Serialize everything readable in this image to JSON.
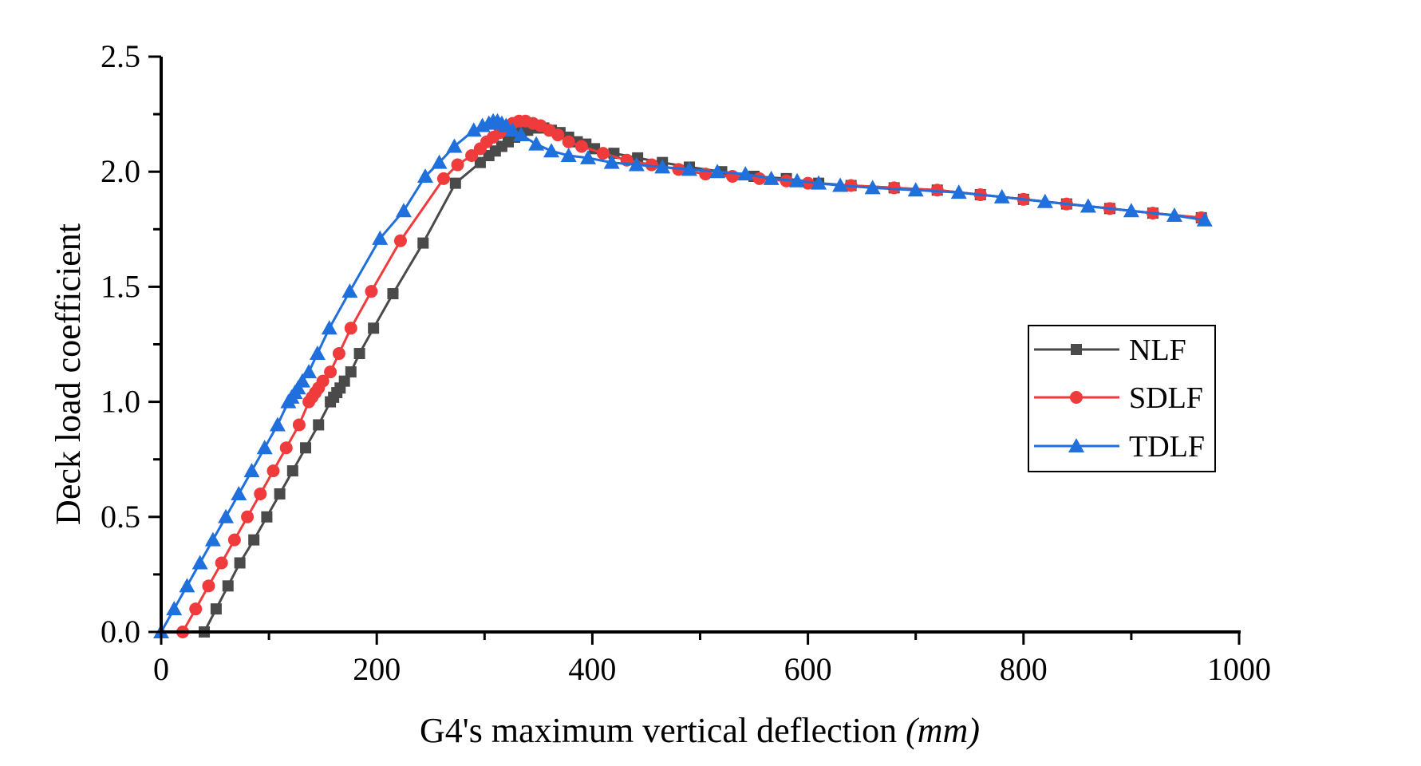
{
  "chart_data": {
    "type": "line",
    "title": "",
    "xlabel": "G4's maximum vertical deflection",
    "xlabel_unit": "(mm)",
    "ylabel": "Deck load coefficient",
    "xlim": [
      0,
      1000
    ],
    "ylim": [
      0,
      2.5
    ],
    "xticks": [
      0,
      200,
      400,
      600,
      800,
      1000
    ],
    "xtick_labels": [
      "0",
      "200",
      "400",
      "600",
      "800",
      "1000"
    ],
    "xminor_step": 100,
    "yticks": [
      0.0,
      0.5,
      1.0,
      1.5,
      2.0,
      2.5
    ],
    "ytick_labels": [
      "0.0",
      "0.5",
      "1.0",
      "1.5",
      "2.0",
      "2.5"
    ],
    "yminor_step": 0.25,
    "grid": false,
    "legend_position": "right",
    "series": [
      {
        "name": "NLF",
        "color": "#4a4a4a",
        "marker": "square",
        "x": [
          40,
          51,
          62,
          73,
          86,
          98,
          110,
          122,
          134,
          146,
          157,
          160,
          163,
          166,
          170,
          176,
          184,
          197,
          215,
          243,
          273,
          296,
          304,
          310,
          316,
          322,
          328,
          334,
          340,
          347,
          355,
          362,
          370,
          378,
          386,
          394,
          402,
          420,
          442,
          465,
          490,
          520,
          550,
          580,
          610,
          640,
          680,
          720,
          760,
          800,
          840,
          880,
          920,
          965
        ],
        "y": [
          0.0,
          0.1,
          0.2,
          0.3,
          0.4,
          0.5,
          0.6,
          0.7,
          0.8,
          0.9,
          1.0,
          1.02,
          1.04,
          1.06,
          1.09,
          1.13,
          1.21,
          1.32,
          1.47,
          1.69,
          1.95,
          2.04,
          2.07,
          2.09,
          2.11,
          2.13,
          2.15,
          2.17,
          2.18,
          2.19,
          2.19,
          2.18,
          2.17,
          2.15,
          2.13,
          2.12,
          2.1,
          2.08,
          2.06,
          2.04,
          2.02,
          2.0,
          1.98,
          1.97,
          1.95,
          1.94,
          1.93,
          1.92,
          1.9,
          1.88,
          1.86,
          1.84,
          1.82,
          1.8
        ]
      },
      {
        "name": "SDLF",
        "color": "#ef3b3b",
        "marker": "circle",
        "x": [
          20,
          32,
          44,
          56,
          68,
          80,
          92,
          104,
          116,
          128,
          137,
          140,
          143,
          146,
          150,
          157,
          165,
          176,
          195,
          222,
          262,
          275,
          288,
          296,
          302,
          308,
          314,
          320,
          326,
          332,
          338,
          345,
          352,
          360,
          368,
          378,
          390,
          410,
          432,
          455,
          480,
          505,
          530,
          555,
          580,
          600,
          640,
          680,
          720,
          760,
          800,
          840,
          880,
          920,
          965
        ],
        "y": [
          0.0,
          0.1,
          0.2,
          0.3,
          0.4,
          0.5,
          0.6,
          0.7,
          0.8,
          0.9,
          1.0,
          1.02,
          1.04,
          1.06,
          1.09,
          1.13,
          1.21,
          1.32,
          1.48,
          1.7,
          1.97,
          2.03,
          2.07,
          2.1,
          2.13,
          2.15,
          2.17,
          2.19,
          2.21,
          2.22,
          2.22,
          2.21,
          2.2,
          2.18,
          2.16,
          2.13,
          2.11,
          2.08,
          2.05,
          2.03,
          2.01,
          1.99,
          1.98,
          1.97,
          1.96,
          1.95,
          1.94,
          1.93,
          1.92,
          1.9,
          1.88,
          1.86,
          1.84,
          1.82,
          1.8
        ]
      },
      {
        "name": "TDLF",
        "color": "#1f6fdc",
        "marker": "triangle",
        "x": [
          0,
          12,
          24,
          36,
          48,
          60,
          72,
          84,
          96,
          108,
          118,
          121,
          124,
          127,
          131,
          137,
          145,
          156,
          175,
          203,
          225,
          245,
          258,
          272,
          290,
          298,
          304,
          308,
          312,
          316,
          320,
          326,
          334,
          348,
          362,
          378,
          396,
          418,
          441,
          465,
          490,
          516,
          542,
          566,
          590,
          610,
          630,
          660,
          700,
          740,
          780,
          820,
          860,
          900,
          940,
          968
        ],
        "y": [
          0.0,
          0.1,
          0.2,
          0.3,
          0.4,
          0.5,
          0.6,
          0.7,
          0.8,
          0.9,
          1.0,
          1.02,
          1.04,
          1.06,
          1.09,
          1.13,
          1.21,
          1.32,
          1.48,
          1.71,
          1.83,
          1.98,
          2.04,
          2.11,
          2.18,
          2.2,
          2.21,
          2.22,
          2.22,
          2.21,
          2.2,
          2.18,
          2.16,
          2.12,
          2.09,
          2.07,
          2.06,
          2.04,
          2.03,
          2.02,
          2.01,
          2.0,
          1.99,
          1.97,
          1.96,
          1.95,
          1.94,
          1.93,
          1.92,
          1.91,
          1.89,
          1.87,
          1.85,
          1.83,
          1.81,
          1.79
        ]
      }
    ]
  }
}
